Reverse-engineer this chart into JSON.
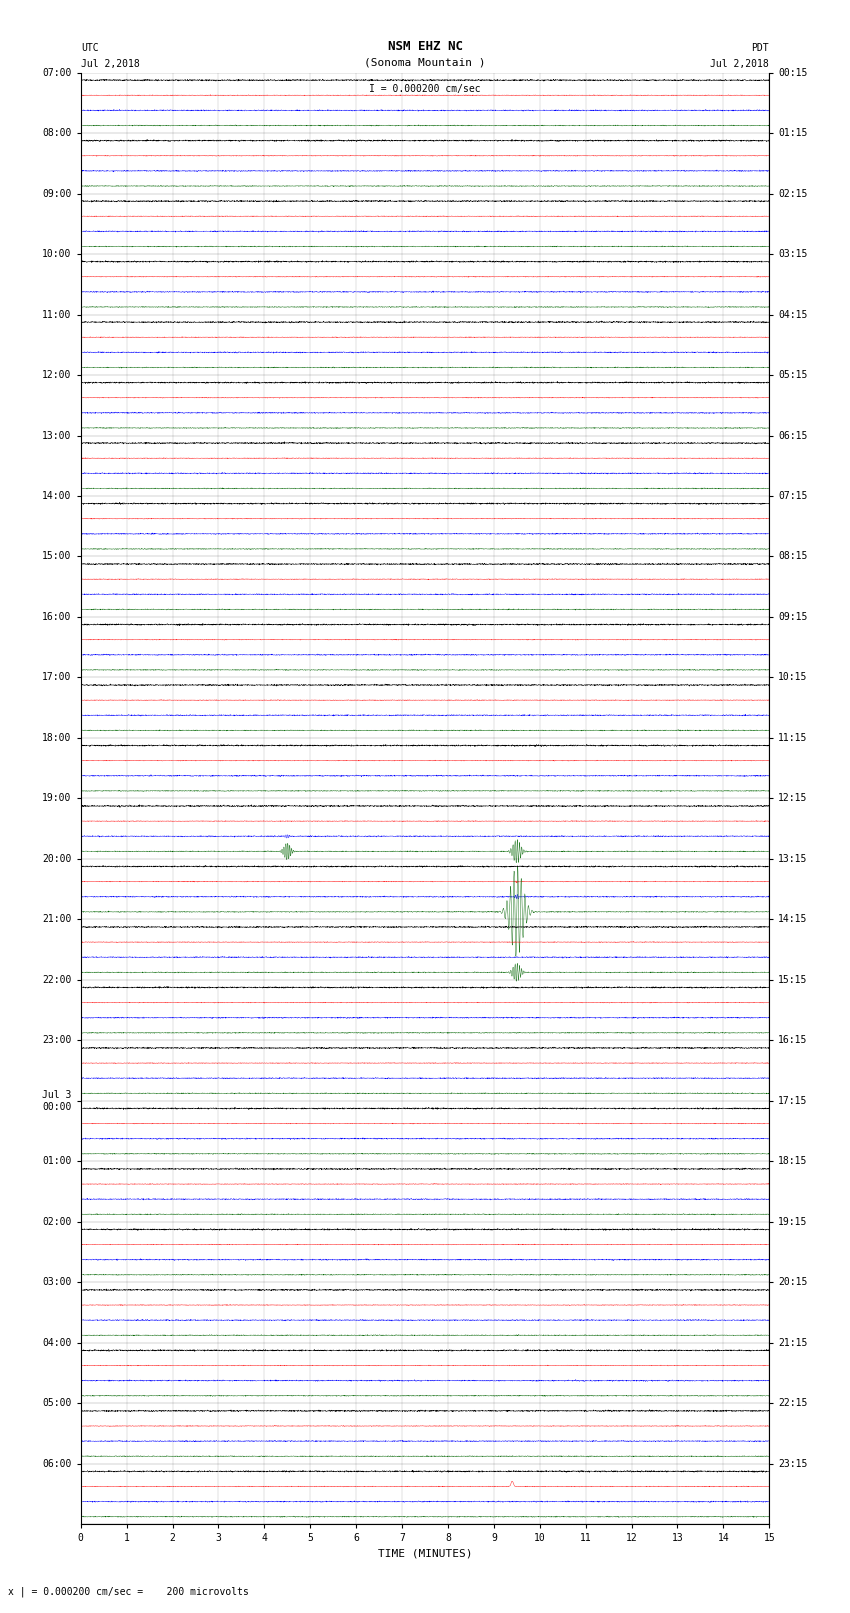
{
  "title_line1": "NSM EHZ NC",
  "title_line2": "(Sonoma Mountain )",
  "scale_label": "I = 0.000200 cm/sec",
  "footer_label": "x | = 0.000200 cm/sec =    200 microvolts",
  "xlabel": "TIME (MINUTES)",
  "left_times_utc": [
    "07:00",
    "08:00",
    "09:00",
    "10:00",
    "11:00",
    "12:00",
    "13:00",
    "14:00",
    "15:00",
    "16:00",
    "17:00",
    "18:00",
    "19:00",
    "20:00",
    "21:00",
    "22:00",
    "23:00",
    "00:00",
    "01:00",
    "02:00",
    "03:00",
    "04:00",
    "05:00",
    "06:00"
  ],
  "right_times_pdt": [
    "00:15",
    "01:15",
    "02:15",
    "03:15",
    "04:15",
    "05:15",
    "06:15",
    "07:15",
    "08:15",
    "09:15",
    "10:15",
    "11:15",
    "12:15",
    "13:15",
    "14:15",
    "15:15",
    "16:15",
    "17:15",
    "18:15",
    "19:15",
    "20:15",
    "21:15",
    "22:15",
    "23:15"
  ],
  "jul3_row": 17,
  "num_rows": 24,
  "traces_per_row": 4,
  "minutes_per_row": 15,
  "colors": [
    "black",
    "red",
    "blue",
    "darkgreen"
  ],
  "noise_amp_black": 0.022,
  "noise_amp_red": 0.01,
  "noise_amp_blue": 0.018,
  "noise_amp_green": 0.014,
  "bg_color": "white",
  "grid_color": "#aaaaaa",
  "event_a_row": 12,
  "event_a_minute": 4.5,
  "event_a_ci": 3,
  "event_b_row": 12,
  "event_b_minute": 4.5,
  "event_b_ci": 2,
  "event_main_row": 13,
  "event_main_minute": 9.5,
  "event_main_ci": 3,
  "event_red_row": 23,
  "event_red_minute": 9.4,
  "event_red_ci": 1,
  "figwidth": 8.5,
  "figheight": 16.13
}
